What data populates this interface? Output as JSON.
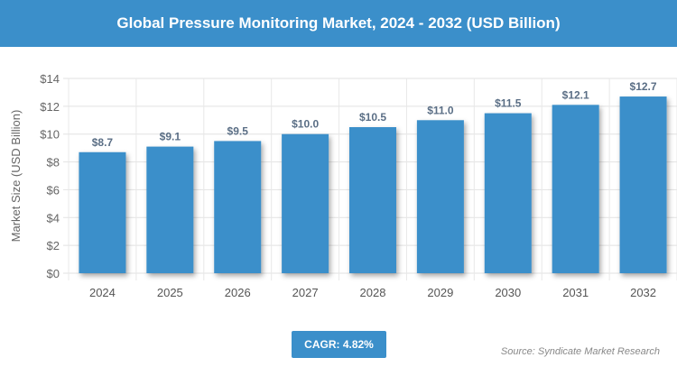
{
  "title": "Global Pressure Monitoring Market, 2024 - 2032 (USD Billion)",
  "cagr": "CAGR: 4.82%",
  "source": "Source: Syndicate Market Research",
  "colors": {
    "bar": "#3b8fca",
    "banner": "#3b8fca",
    "label": "#5a6e85"
  },
  "chart_data": {
    "type": "bar",
    "categories": [
      "2024",
      "2025",
      "2026",
      "2027",
      "2028",
      "2029",
      "2030",
      "2031",
      "2032"
    ],
    "values": [
      8.7,
      9.1,
      9.5,
      10.0,
      10.5,
      11.0,
      11.5,
      12.1,
      12.7
    ],
    "data_labels": [
      "$8.7",
      "$9.1",
      "$9.5",
      "$10.0",
      "$10.5",
      "$11.0",
      "$11.5",
      "$12.1",
      "$12.7"
    ],
    "ylabel": "Market Size (USD Billion)",
    "ylim": [
      0,
      14
    ],
    "yticks": [
      0,
      2,
      4,
      6,
      8,
      10,
      12,
      14
    ],
    "ytick_labels": [
      "$0",
      "$2",
      "$4",
      "$6",
      "$8",
      "$10",
      "$12",
      "$14"
    ],
    "grid": true
  }
}
